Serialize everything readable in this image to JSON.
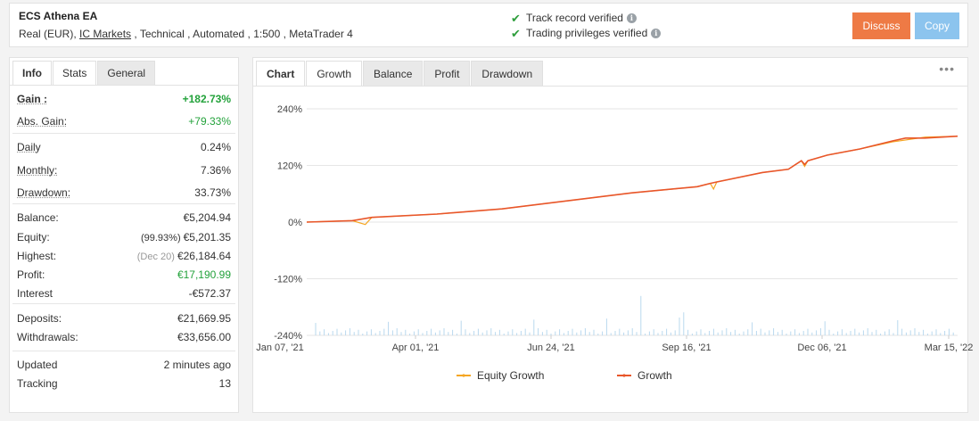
{
  "header": {
    "system_name": "ECS Athena EA",
    "meta_prefix": "Real (EUR), ",
    "broker": "IC Markets",
    "meta_suffix": " , Technical , Automated , 1:500 , MetaTrader 4",
    "verified": [
      "Track record verified",
      "Trading privileges verified"
    ],
    "discuss_label": "Discuss",
    "copy_label": "Copy",
    "check_icon": "check-icon",
    "info_icon": "info-icon"
  },
  "left_tabs": [
    "Info",
    "Stats",
    "General"
  ],
  "stats": {
    "gain_label": "Gain :",
    "gain_value": "+182.73%",
    "abs_gain_label": "Abs. Gain:",
    "abs_gain_value": "+79.33%",
    "daily_label": "Daily",
    "daily_value": "0.24%",
    "monthly_label": "Monthly:",
    "monthly_value": "7.36%",
    "drawdown_label": "Drawdown:",
    "drawdown_value": "33.73%",
    "balance_label": "Balance:",
    "balance_value": "€5,204.94",
    "equity_label": "Equity:",
    "equity_pct": "(99.93%)",
    "equity_value": "€5,201.35",
    "highest_label": "Highest:",
    "highest_date": "(Dec 20)",
    "highest_value": "€26,184.64",
    "profit_label": "Profit:",
    "profit_value": "€17,190.99",
    "interest_label": "Interest",
    "interest_value": "-€572.37",
    "deposits_label": "Deposits:",
    "deposits_value": "€21,669.95",
    "withdrawals_label": "Withdrawals:",
    "withdrawals_value": "€33,656.00",
    "updated_label": "Updated",
    "updated_value": "2 minutes ago",
    "tracking_label": "Tracking",
    "tracking_value": "13"
  },
  "chart_tabs": [
    "Chart",
    "Growth",
    "Balance",
    "Profit",
    "Drawdown"
  ],
  "menu_icon": "more-dots-icon",
  "chart_data": {
    "type": "line",
    "y_ticks": [
      "240%",
      "120%",
      "0%",
      "-120%",
      "-240%"
    ],
    "y_tick_values": [
      240,
      120,
      0,
      -120,
      -240
    ],
    "ylim": [
      -240,
      240
    ],
    "x_tick_labels": [
      "Jan 07, '21",
      "Apr 01, '21",
      "Jun 24, '21",
      "Sep 16, '21",
      "Dec 06, '21",
      "Mar 15, '22"
    ],
    "grid": "horizontal",
    "legend_position": "bottom",
    "series": [
      {
        "name": "Equity Growth",
        "color": "#f5a623",
        "x": [
          0,
          0.07,
          0.09,
          0.1,
          0.2,
          0.3,
          0.4,
          0.5,
          0.6,
          0.62,
          0.625,
          0.63,
          0.7,
          0.74,
          0.76,
          0.765,
          0.77,
          0.8,
          0.85,
          0.9,
          0.95,
          1.0
        ],
        "y": [
          0,
          3,
          -5,
          10,
          17,
          28,
          45,
          62,
          75,
          82,
          70,
          85,
          105,
          112,
          130,
          118,
          130,
          142,
          155,
          170,
          180,
          182
        ]
      },
      {
        "name": "Growth",
        "color": "#e8562a",
        "x": [
          0,
          0.07,
          0.1,
          0.2,
          0.3,
          0.4,
          0.5,
          0.6,
          0.62,
          0.63,
          0.7,
          0.74,
          0.76,
          0.765,
          0.77,
          0.8,
          0.85,
          0.9,
          0.92,
          0.95,
          1.0
        ],
        "y": [
          0,
          3,
          10,
          17,
          28,
          45,
          62,
          75,
          82,
          85,
          105,
          112,
          130,
          122,
          130,
          142,
          155,
          172,
          178,
          178,
          182
        ]
      }
    ]
  }
}
